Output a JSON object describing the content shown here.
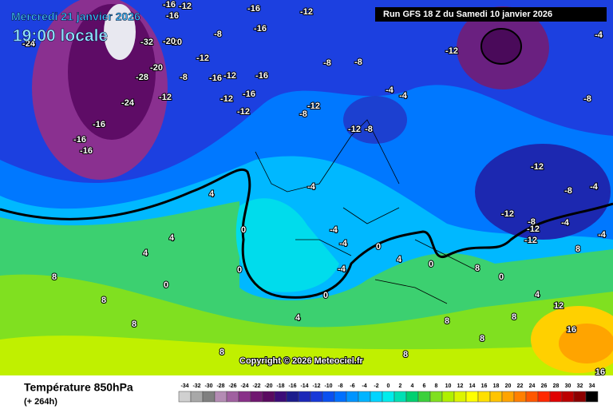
{
  "header": {
    "date": "Mercredi 21 janvier 2026",
    "time": "19:00 locale",
    "run": "Run GFS 18 Z du Samedi 10 janvier 2026",
    "copyright": "Copyright © 2026 Meteociel.fr"
  },
  "footer": {
    "title": "Température 850hPa",
    "lead": "(+ 264h)"
  },
  "legend": {
    "values": [
      -34,
      -32,
      -30,
      -28,
      -26,
      -24,
      -22,
      -20,
      -18,
      -16,
      -14,
      -12,
      -10,
      -8,
      -6,
      -4,
      -2,
      0,
      2,
      4,
      6,
      8,
      10,
      12,
      14,
      16,
      18,
      20,
      22,
      24,
      26,
      28,
      30,
      32,
      34
    ],
    "colors": [
      "#d0d0d0",
      "#a8a8a8",
      "#808080",
      "#b48cb4",
      "#a060a0",
      "#883088",
      "#701870",
      "#5a0a60",
      "#3c0c78",
      "#1c1c8c",
      "#1c28b8",
      "#1838d8",
      "#0a50f0",
      "#0070ff",
      "#0094ff",
      "#00b4ff",
      "#00d4ff",
      "#00ecec",
      "#00e0b4",
      "#00d070",
      "#3cd03c",
      "#80e020",
      "#b0f000",
      "#dcf400",
      "#ffff00",
      "#ffe000",
      "#ffc400",
      "#ffa400",
      "#ff8000",
      "#ff5800",
      "#ff2800",
      "#e00000",
      "#bc0000",
      "#8c0000",
      "#000000"
    ]
  },
  "map_labels": [
    -16,
    -12,
    -16,
    -16,
    -12,
    -24,
    -32,
    -20,
    -8,
    -12,
    -12,
    -8,
    -28,
    -20,
    -12,
    -16,
    -12,
    -16,
    -8,
    -12,
    -24,
    -16,
    -16,
    -16,
    -12,
    -16,
    -8,
    -12,
    -20,
    -16,
    -8,
    -8,
    -4,
    -12,
    -8,
    -4,
    -4,
    -12,
    -8,
    -4,
    -12,
    -8,
    -12,
    -4,
    -4,
    4,
    0,
    4,
    8,
    4,
    0,
    0,
    -4,
    0,
    -4,
    4,
    0,
    8,
    8,
    8,
    8,
    0,
    4,
    8,
    8,
    8,
    8,
    12,
    16,
    16,
    0,
    4,
    8,
    -4,
    -12,
    -4
  ]
}
